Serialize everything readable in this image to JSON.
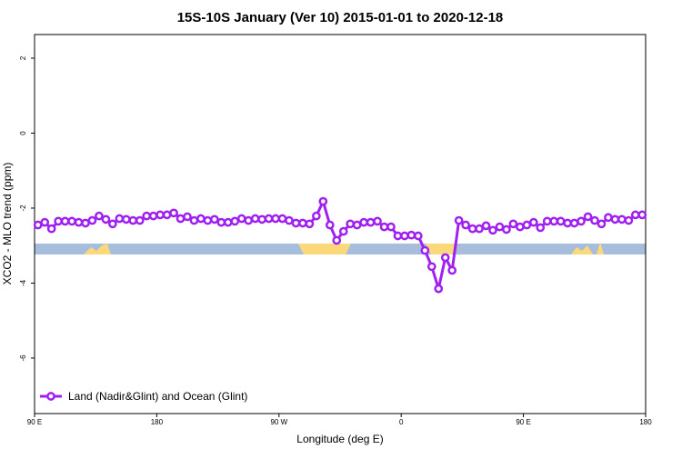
{
  "chart_data": {
    "type": "line",
    "title": "15S-10S January (Ver 10)   2015-01-01 to 2020-12-18",
    "x_label": "Longitude (deg E)",
    "y_label": "XCO2 - MLO trend (ppm)",
    "x": [
      92.5,
      97.5,
      102.5,
      107.5,
      112.5,
      117.5,
      122.5,
      127.5,
      132.5,
      137.5,
      142.5,
      147.5,
      152.5,
      157.5,
      162.5,
      167.5,
      172.5,
      177.5,
      182.5,
      187.5,
      192.5,
      197.5,
      202.5,
      207.5,
      212.5,
      217.5,
      222.5,
      227.5,
      232.5,
      237.5,
      242.5,
      247.5,
      252.5,
      257.5,
      262.5,
      267.5,
      272.5,
      277.5,
      282.5,
      287.5,
      292.5,
      297.5,
      302.5,
      307.5,
      312.5,
      317.5,
      322.5,
      327.5,
      332.5,
      337.5,
      342.5,
      347.5,
      352.5,
      357.5,
      362.5,
      367.5,
      372.5,
      377.5,
      382.5,
      387.5,
      392.5,
      397.5,
      402.5,
      407.5,
      412.5,
      417.5,
      422.5,
      427.5,
      432.5,
      437.5,
      442.5,
      447.5,
      452.5,
      457.5,
      462.5,
      467.5,
      472.5,
      477.5,
      482.5,
      487.5,
      492.5,
      497.5,
      502.5,
      507.5,
      512.5,
      517.5,
      522.5,
      527.5,
      532.5,
      537.5
    ],
    "series": [
      {
        "name": "Land (Nadir&Glint) and Ocean (Glint)",
        "color": "#a020f0",
        "values": [
          -2.45,
          -2.38,
          -2.55,
          -2.35,
          -2.35,
          -2.35,
          -2.38,
          -2.4,
          -2.33,
          -2.21,
          -2.3,
          -2.42,
          -2.28,
          -2.3,
          -2.33,
          -2.33,
          -2.21,
          -2.21,
          -2.18,
          -2.18,
          -2.13,
          -2.28,
          -2.23,
          -2.33,
          -2.28,
          -2.33,
          -2.3,
          -2.38,
          -2.38,
          -2.35,
          -2.28,
          -2.33,
          -2.28,
          -2.3,
          -2.28,
          -2.28,
          -2.28,
          -2.33,
          -2.4,
          -2.4,
          -2.42,
          -2.21,
          -1.82,
          -2.45,
          -2.86,
          -2.62,
          -2.42,
          -2.45,
          -2.38,
          -2.38,
          -2.35,
          -2.5,
          -2.5,
          -2.74,
          -2.74,
          -2.72,
          -2.74,
          -3.13,
          -3.56,
          -4.15,
          -3.32,
          -3.66,
          -2.33,
          -2.45,
          -2.55,
          -2.55,
          -2.47,
          -2.59,
          -2.5,
          -2.57,
          -2.42,
          -2.5,
          -2.45,
          -2.38,
          -2.52,
          -2.35,
          -2.35,
          -2.35,
          -2.4,
          -2.4,
          -2.35,
          -2.23,
          -2.33,
          -2.42,
          -2.25,
          -2.3,
          -2.3,
          -2.33,
          -2.18,
          -2.18
        ]
      }
    ],
    "xlim": [
      90,
      540
    ],
    "xticks": [
      {
        "value": 90,
        "label": "90 E"
      },
      180,
      {
        "value": 270,
        "label": "90 W"
      },
      {
        "value": 360,
        "label": "0"
      },
      {
        "value": 450,
        "label": "90 E"
      },
      {
        "value": 540,
        "label": "180"
      }
    ],
    "ylim": [
      -7.48,
      2.63
    ],
    "yticks": [
      2,
      0,
      -2,
      -4,
      -6
    ],
    "legend": "bottom-left"
  }
}
